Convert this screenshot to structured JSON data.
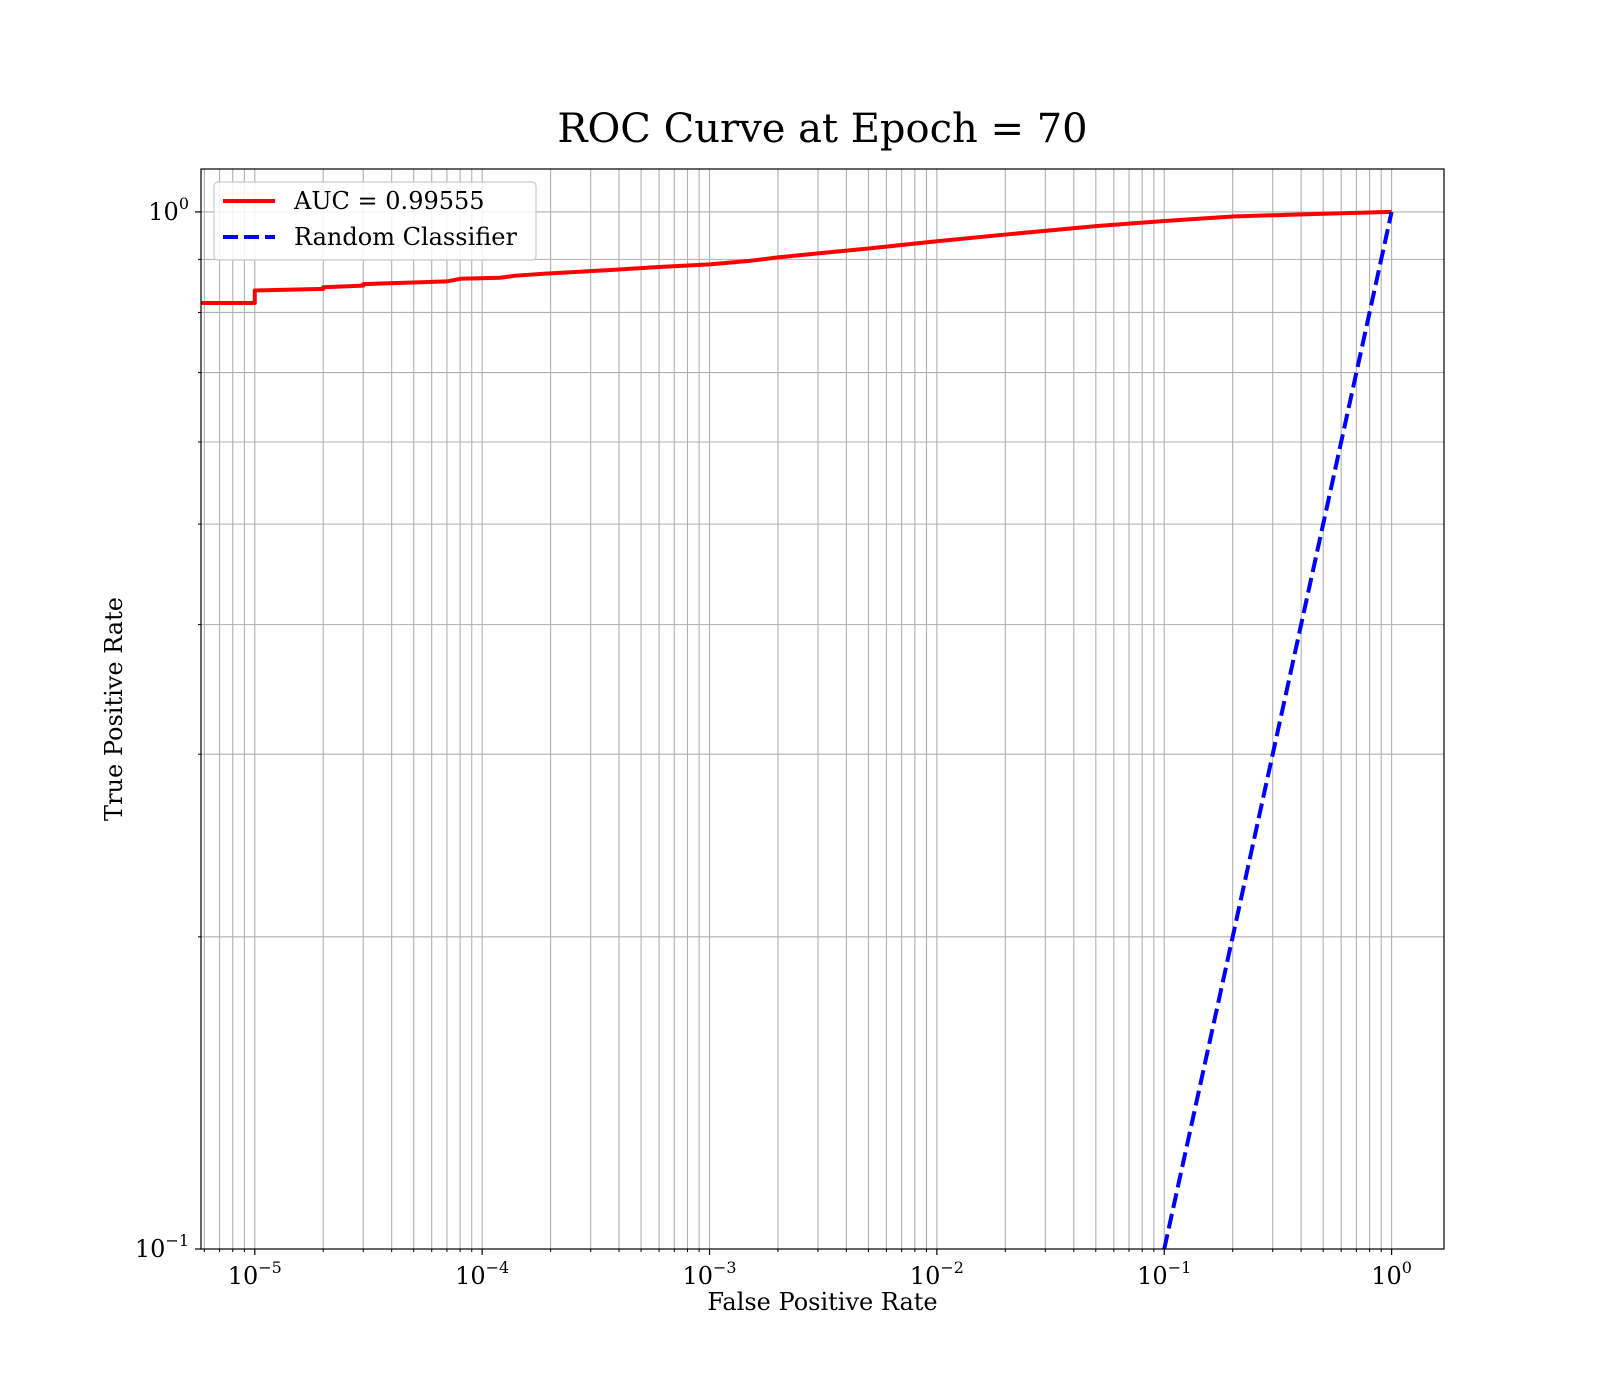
{
  "chart_data": {
    "type": "line",
    "title": "ROC Curve at Epoch = 70",
    "xlabel": "False Positive Rate",
    "ylabel": "True Positive Rate",
    "xscale": "log",
    "yscale": "log",
    "xlim": [
      5.8e-06,
      1.7
    ],
    "ylim": [
      0.1,
      1.1
    ],
    "grid": true,
    "legend_position": "top-left",
    "x_ticks": [
      {
        "base": "10",
        "exp": "−5",
        "value": 1e-05
      },
      {
        "base": "10",
        "exp": "−4",
        "value": 0.0001
      },
      {
        "base": "10",
        "exp": "−3",
        "value": 0.001
      },
      {
        "base": "10",
        "exp": "−2",
        "value": 0.01
      },
      {
        "base": "10",
        "exp": "−1",
        "value": 0.1
      },
      {
        "base": "10",
        "exp": "0",
        "value": 1
      }
    ],
    "y_ticks": [
      {
        "base": "10",
        "exp": "−1",
        "value": 0.1
      },
      {
        "base": "10",
        "exp": "0",
        "value": 1
      }
    ],
    "series": [
      {
        "name": "AUC = 0.99555",
        "color": "#ff0000",
        "style": "solid",
        "x": [
          5.8e-06,
          1e-05,
          1e-05,
          2e-05,
          2e-05,
          3e-05,
          3e-05,
          5e-05,
          7e-05,
          8e-05,
          0.00012,
          0.00014,
          0.00019,
          0.00025,
          0.0004,
          0.0006,
          0.001,
          0.0015,
          0.002,
          0.003,
          0.005,
          0.01,
          0.02,
          0.05,
          0.1,
          0.2,
          0.5,
          1.0
        ],
        "y": [
          0.817,
          0.817,
          0.84,
          0.843,
          0.846,
          0.849,
          0.852,
          0.855,
          0.857,
          0.862,
          0.864,
          0.868,
          0.872,
          0.875,
          0.88,
          0.885,
          0.89,
          0.897,
          0.904,
          0.912,
          0.922,
          0.937,
          0.951,
          0.969,
          0.98,
          0.99,
          0.996,
          1.0
        ]
      },
      {
        "name": "Random Classifier",
        "color": "#0000ff",
        "style": "dashed",
        "x": [
          0.1,
          1.0
        ],
        "y": [
          0.1,
          1.0
        ]
      }
    ]
  }
}
